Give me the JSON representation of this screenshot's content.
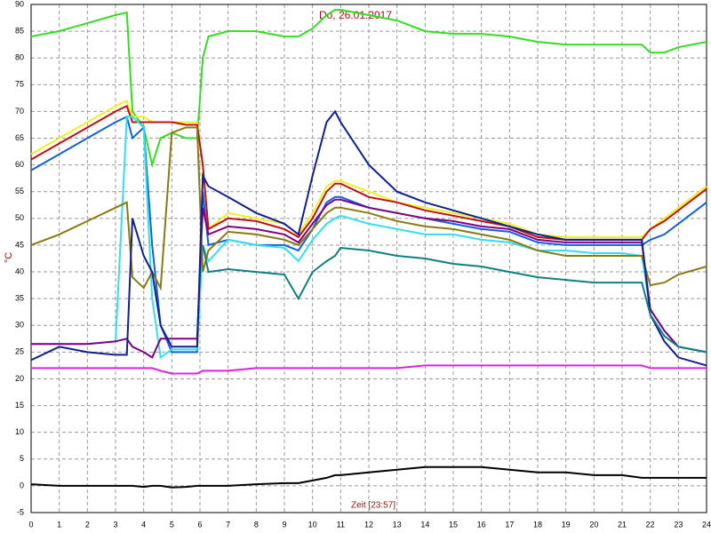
{
  "chart_data": {
    "type": "line",
    "title": "Do, 26.01.2017",
    "ylabel": "°C",
    "xlabel": "Zeit [23:57]",
    "x": [
      0,
      1,
      2,
      3,
      3.4,
      3.6,
      4,
      4.3,
      4.6,
      5,
      5.5,
      5.9,
      6.1,
      6.3,
      7,
      8,
      9,
      9.5,
      10,
      10.5,
      10.8,
      11,
      12,
      13,
      14,
      15,
      16,
      17,
      18,
      19,
      20,
      21,
      21.7,
      22,
      22.5,
      23,
      24
    ],
    "xlim": [
      0,
      24
    ],
    "xticks": [
      0,
      1,
      2,
      3,
      4,
      5,
      6,
      7,
      8,
      9,
      10,
      11,
      12,
      13,
      14,
      15,
      16,
      17,
      18,
      19,
      20,
      21,
      22,
      23,
      24
    ],
    "ylim": [
      -5,
      90
    ],
    "yticks": [
      -5,
      0,
      5,
      10,
      15,
      20,
      25,
      30,
      35,
      40,
      45,
      50,
      55,
      60,
      65,
      70,
      75,
      80,
      85,
      90
    ],
    "grid": true,
    "series": [
      {
        "color": "#33dd22",
        "values": [
          84,
          85,
          86.5,
          88,
          88.5,
          70,
          67,
          60,
          65,
          66,
          65,
          65,
          80,
          84,
          85,
          85,
          84,
          84,
          85.5,
          88,
          89,
          89,
          88,
          87,
          85,
          84.5,
          84.5,
          84,
          83,
          82.5,
          82.5,
          82.5,
          82.5,
          81,
          81,
          82,
          83
        ]
      },
      {
        "color": "#f0f020",
        "values": [
          62,
          65,
          68,
          71,
          72,
          69,
          69,
          68,
          68,
          68,
          68,
          68,
          60,
          48,
          51,
          50,
          49,
          47,
          51,
          56,
          57,
          57,
          55,
          53,
          52,
          51,
          50,
          49,
          47,
          46.5,
          46.5,
          46.5,
          46.5,
          48,
          50,
          52,
          56
        ]
      },
      {
        "color": "#c01010",
        "values": [
          61,
          64,
          67,
          70,
          71,
          68,
          68,
          68,
          68,
          68,
          67.5,
          67.5,
          60,
          48,
          50,
          49.5,
          48,
          46.5,
          50,
          55,
          56.5,
          56.5,
          54,
          53,
          51.5,
          50.5,
          49.5,
          48.5,
          46.5,
          46,
          46,
          46,
          46,
          48,
          49.5,
          51.5,
          55.5
        ]
      },
      {
        "color": "#1060e0",
        "values": [
          59,
          62,
          65,
          68,
          69,
          65,
          67,
          45,
          30,
          25,
          25,
          25,
          55,
          45,
          46,
          45,
          45,
          44,
          48,
          53,
          54,
          54,
          52,
          51,
          50,
          49,
          48,
          47.5,
          45.5,
          45,
          45,
          45,
          45,
          46,
          47,
          49,
          53
        ]
      },
      {
        "color": "#30e0f0",
        "values": [
          26.5,
          26.5,
          26.5,
          27,
          69,
          69,
          67,
          35,
          24,
          25.5,
          25.5,
          25.5,
          45,
          42,
          46,
          45,
          44.5,
          42,
          46,
          49,
          50,
          50.5,
          49,
          48,
          47,
          47,
          46,
          45.5,
          44,
          44,
          43.5,
          43.5,
          43,
          33,
          29,
          26,
          25
        ]
      },
      {
        "color": "#800080",
        "values": [
          26.5,
          26.5,
          26.5,
          27,
          27.5,
          26,
          25,
          24,
          27.5,
          27.5,
          27.5,
          27.5,
          52,
          47,
          48.5,
          48,
          47,
          45.5,
          49,
          52.5,
          53.5,
          53.5,
          52,
          51,
          50,
          49.5,
          48.5,
          48,
          46,
          45.5,
          45.5,
          45.5,
          45.5,
          33,
          29,
          26,
          25
        ]
      },
      {
        "color": "#8a7a10",
        "values": [
          45,
          47,
          49.5,
          52,
          53,
          39,
          37,
          40,
          37,
          66,
          67,
          67,
          40,
          44,
          47.5,
          47,
          46,
          45,
          48,
          51,
          52,
          52,
          51,
          49.5,
          48.5,
          48,
          47,
          46,
          44,
          43,
          43,
          43,
          43,
          37.5,
          38,
          39.5,
          41
        ]
      },
      {
        "color": "#102090",
        "values": [
          23.5,
          26,
          25,
          24.5,
          24.5,
          50,
          43,
          40,
          30,
          26,
          26,
          26,
          58,
          56,
          54,
          51,
          49,
          47,
          58,
          68,
          70,
          68,
          60,
          55,
          53,
          51.5,
          50,
          48.5,
          47,
          46,
          46,
          46,
          46,
          32,
          27,
          24,
          22.5
        ]
      },
      {
        "color": "#108080",
        "values": [
          null,
          null,
          null,
          null,
          null,
          null,
          null,
          null,
          null,
          null,
          null,
          null,
          45,
          40,
          40.5,
          40,
          39.5,
          35,
          40,
          42,
          43,
          44.5,
          44,
          43,
          42.5,
          41.5,
          41,
          40,
          39,
          38.5,
          38,
          38,
          38,
          32,
          28,
          26,
          25
        ]
      },
      {
        "color": "#e020e0",
        "values": [
          22,
          22,
          22,
          22,
          22,
          22,
          22,
          22,
          21.5,
          21,
          21,
          21,
          21.5,
          21.5,
          21.5,
          22,
          22,
          22,
          22,
          22,
          22,
          22,
          22,
          22,
          22.5,
          22.5,
          22.5,
          22.5,
          22.5,
          22.5,
          22.5,
          22.5,
          22.5,
          22,
          22,
          22,
          22
        ]
      },
      {
        "color": "#000000",
        "values": [
          0.3,
          0,
          0,
          0,
          0,
          0,
          -0.2,
          0,
          0,
          -0.3,
          -0.2,
          0,
          0,
          0,
          0,
          0.3,
          0.5,
          0.5,
          1,
          1.5,
          2,
          2,
          2.5,
          3,
          3.5,
          3.5,
          3.5,
          3,
          2.5,
          2.5,
          2,
          2,
          1.5,
          1.5,
          1.5,
          1.5,
          1.5
        ]
      }
    ]
  }
}
